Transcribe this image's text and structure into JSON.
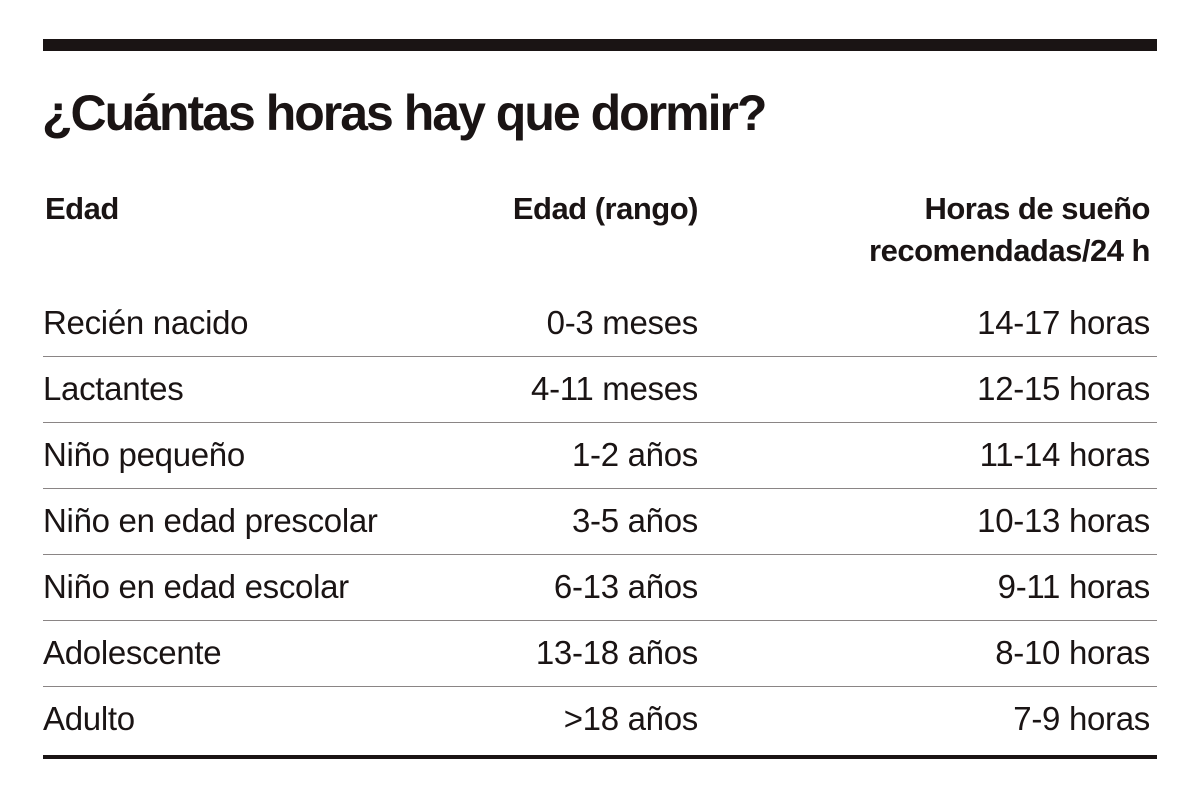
{
  "title": "¿Cuántas horas hay que dormir?",
  "table": {
    "headers": {
      "age": "Edad",
      "range": "Edad (rango)",
      "hours_line1": "Horas de sueño",
      "hours_line2": "recomendadas/24 h"
    },
    "rows": [
      {
        "age": "Recién nacido",
        "range": "0-3 meses",
        "hours": "14-17 horas"
      },
      {
        "age": "Lactantes",
        "range": "4-11 meses",
        "hours": "12-15 horas"
      },
      {
        "age": "Niño pequeño",
        "range": "1-2 años",
        "hours": "11-14 horas"
      },
      {
        "age": "Niño en edad prescolar",
        "range": "3-5 años",
        "hours": "10-13 horas"
      },
      {
        "age": "Niño en edad escolar",
        "range": "6-13 años",
        "hours": "9-11 horas"
      },
      {
        "age": "Adolescente",
        "range": "13-18 años",
        "hours": "8-10 horas"
      },
      {
        "age": "Adulto",
        "range": ">18 años",
        "hours": "7-9 horas"
      }
    ]
  }
}
